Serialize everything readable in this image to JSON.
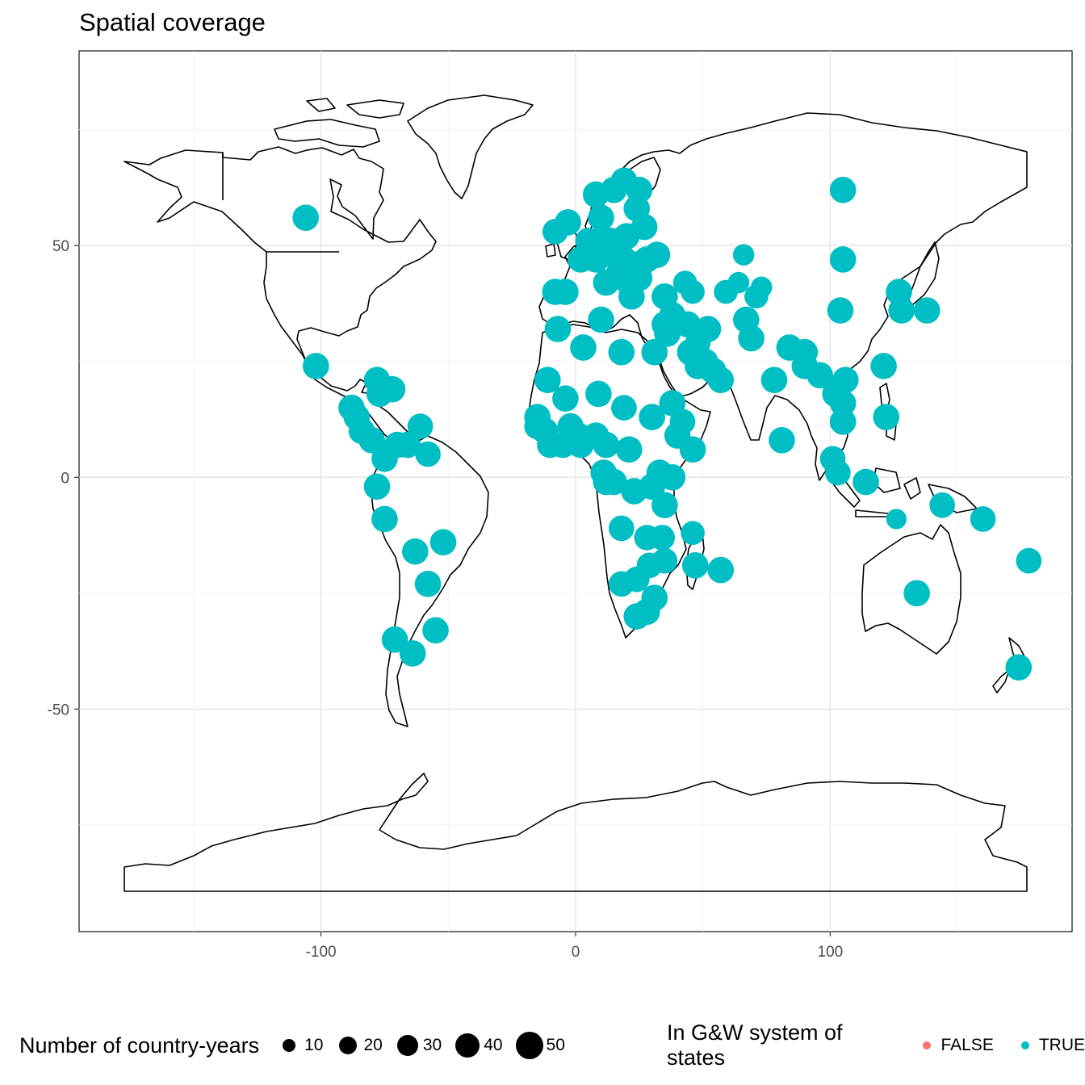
{
  "chart_data": {
    "type": "scatter",
    "title": "Spatial coverage",
    "xlabel": "",
    "ylabel": "",
    "xlim": [
      -195,
      195
    ],
    "ylim": [
      -98,
      92
    ],
    "x_ticks": [
      -100,
      0,
      100
    ],
    "y_ticks": [
      50,
      0,
      -50
    ],
    "x_tick_labels": [
      "-100",
      "0",
      "100"
    ],
    "y_tick_labels": [
      "50",
      "0",
      "-50"
    ],
    "grid": true,
    "legend_position": "bottom",
    "size_legend": {
      "title": "Number of country-years",
      "entries": [
        {
          "label": "10",
          "value": 10
        },
        {
          "label": "20",
          "value": 20
        },
        {
          "label": "30",
          "value": 30
        },
        {
          "label": "40",
          "value": 40
        },
        {
          "label": "50",
          "value": 50
        }
      ]
    },
    "color_legend": {
      "title": "In G&W system of states",
      "entries": [
        {
          "label": "FALSE",
          "color": "#F8766D"
        },
        {
          "label": "TRUE",
          "color": "#00BFC4"
        }
      ]
    },
    "points_series": "TRUE",
    "points": [
      {
        "x": -106,
        "y": 56,
        "size": 44
      },
      {
        "x": -102,
        "y": 24,
        "size": 44
      },
      {
        "x": -88,
        "y": 15,
        "size": 44
      },
      {
        "x": -86,
        "y": 13,
        "size": 44
      },
      {
        "x": -84,
        "y": 10,
        "size": 44
      },
      {
        "x": -80,
        "y": 8,
        "size": 44
      },
      {
        "x": -78,
        "y": 21,
        "size": 44
      },
      {
        "x": -77,
        "y": 18,
        "size": 44
      },
      {
        "x": -72,
        "y": 19,
        "size": 44
      },
      {
        "x": -75,
        "y": 4,
        "size": 44
      },
      {
        "x": -70,
        "y": 7,
        "size": 44
      },
      {
        "x": -61,
        "y": 11,
        "size": 40
      },
      {
        "x": -66,
        "y": 7,
        "size": 44
      },
      {
        "x": -58,
        "y": 5,
        "size": 40
      },
      {
        "x": -78,
        "y": -2,
        "size": 44
      },
      {
        "x": -75,
        "y": -9,
        "size": 44
      },
      {
        "x": -63,
        "y": -16,
        "size": 44
      },
      {
        "x": -52,
        "y": -14,
        "size": 44
      },
      {
        "x": -58,
        "y": -23,
        "size": 44
      },
      {
        "x": -55,
        "y": -33,
        "size": 44
      },
      {
        "x": -71,
        "y": -35,
        "size": 44
      },
      {
        "x": -64,
        "y": -38,
        "size": 44
      },
      {
        "x": -8,
        "y": 53,
        "size": 40
      },
      {
        "x": -3,
        "y": 55,
        "size": 44
      },
      {
        "x": 2,
        "y": 47,
        "size": 44
      },
      {
        "x": 8,
        "y": 61,
        "size": 44
      },
      {
        "x": 10,
        "y": 56,
        "size": 44
      },
      {
        "x": 15,
        "y": 62,
        "size": 44
      },
      {
        "x": 19,
        "y": 64,
        "size": 44
      },
      {
        "x": 25,
        "y": 62,
        "size": 44
      },
      {
        "x": 24,
        "y": 58,
        "size": 44
      },
      {
        "x": 27,
        "y": 54,
        "size": 44
      },
      {
        "x": 20,
        "y": 52,
        "size": 44
      },
      {
        "x": 14,
        "y": 51,
        "size": 44
      },
      {
        "x": 10,
        "y": 51,
        "size": 44
      },
      {
        "x": 5,
        "y": 51,
        "size": 44
      },
      {
        "x": 8,
        "y": 47,
        "size": 44
      },
      {
        "x": 15,
        "y": 48,
        "size": 44
      },
      {
        "x": 19,
        "y": 47,
        "size": 44
      },
      {
        "x": 25,
        "y": 46,
        "size": 44
      },
      {
        "x": 28,
        "y": 47,
        "size": 44
      },
      {
        "x": 32,
        "y": 48,
        "size": 44
      },
      {
        "x": 17,
        "y": 44,
        "size": 44
      },
      {
        "x": 21,
        "y": 42,
        "size": 44
      },
      {
        "x": 22,
        "y": 39,
        "size": 44
      },
      {
        "x": 25,
        "y": 43,
        "size": 44
      },
      {
        "x": 12,
        "y": 42,
        "size": 44
      },
      {
        "x": -8,
        "y": 40,
        "size": 44
      },
      {
        "x": -4,
        "y": 40,
        "size": 44
      },
      {
        "x": 35,
        "y": 39,
        "size": 44
      },
      {
        "x": 43,
        "y": 42,
        "size": 32
      },
      {
        "x": 46,
        "y": 40,
        "size": 32
      },
      {
        "x": 35,
        "y": 33,
        "size": 44
      },
      {
        "x": 36,
        "y": 31,
        "size": 44
      },
      {
        "x": 44,
        "y": 33,
        "size": 44
      },
      {
        "x": 38,
        "y": 35,
        "size": 44
      },
      {
        "x": 45,
        "y": 27,
        "size": 44
      },
      {
        "x": 52,
        "y": 32,
        "size": 44
      },
      {
        "x": 48,
        "y": 29,
        "size": 40
      },
      {
        "x": 51,
        "y": 25,
        "size": 40
      },
      {
        "x": 54,
        "y": 23,
        "size": 44
      },
      {
        "x": 57,
        "y": 21,
        "size": 44
      },
      {
        "x": 48,
        "y": 24,
        "size": 44
      },
      {
        "x": 31,
        "y": 27,
        "size": 44
      },
      {
        "x": 18,
        "y": 27,
        "size": 44
      },
      {
        "x": 10,
        "y": 34,
        "size": 44
      },
      {
        "x": 3,
        "y": 28,
        "size": 44
      },
      {
        "x": -7,
        "y": 32,
        "size": 44
      },
      {
        "x": -11,
        "y": 21,
        "size": 44
      },
      {
        "x": -4,
        "y": 17,
        "size": 44
      },
      {
        "x": 9,
        "y": 18,
        "size": 44
      },
      {
        "x": 19,
        "y": 15,
        "size": 40
      },
      {
        "x": 30,
        "y": 13,
        "size": 44
      },
      {
        "x": 38,
        "y": 16,
        "size": 44
      },
      {
        "x": 40,
        "y": 9,
        "size": 44
      },
      {
        "x": 46,
        "y": 6,
        "size": 44
      },
      {
        "x": 42,
        "y": 12,
        "size": 40
      },
      {
        "x": -15,
        "y": 13,
        "size": 44
      },
      {
        "x": -15,
        "y": 11,
        "size": 44
      },
      {
        "x": -12,
        "y": 10,
        "size": 44
      },
      {
        "x": -10,
        "y": 7,
        "size": 44
      },
      {
        "x": -5,
        "y": 7,
        "size": 44
      },
      {
        "x": -2,
        "y": 11,
        "size": 44
      },
      {
        "x": 1,
        "y": 9,
        "size": 44
      },
      {
        "x": 2,
        "y": 7,
        "size": 44
      },
      {
        "x": 8,
        "y": 9,
        "size": 44
      },
      {
        "x": 12,
        "y": 7,
        "size": 44
      },
      {
        "x": 21,
        "y": 6,
        "size": 44
      },
      {
        "x": 11,
        "y": 1,
        "size": 44
      },
      {
        "x": 12,
        "y": -1,
        "size": 44
      },
      {
        "x": 15,
        "y": -1,
        "size": 44
      },
      {
        "x": 23,
        "y": -3,
        "size": 44
      },
      {
        "x": 30,
        "y": -2,
        "size": 44
      },
      {
        "x": 33,
        "y": 1,
        "size": 44
      },
      {
        "x": 38,
        "y": 0,
        "size": 44
      },
      {
        "x": 35,
        "y": -6,
        "size": 44
      },
      {
        "x": 18,
        "y": -11,
        "size": 40
      },
      {
        "x": 28,
        "y": -13,
        "size": 40
      },
      {
        "x": 34,
        "y": -13,
        "size": 40
      },
      {
        "x": 46,
        "y": -12,
        "size": 32
      },
      {
        "x": 47,
        "y": -19,
        "size": 44
      },
      {
        "x": 57,
        "y": -20,
        "size": 44
      },
      {
        "x": 18,
        "y": -23,
        "size": 40
      },
      {
        "x": 24,
        "y": -22,
        "size": 40
      },
      {
        "x": 29,
        "y": -19,
        "size": 40
      },
      {
        "x": 35,
        "y": -18,
        "size": 40
      },
      {
        "x": 31,
        "y": -26,
        "size": 44
      },
      {
        "x": 24,
        "y": -30,
        "size": 44
      },
      {
        "x": 28,
        "y": -29,
        "size": 44
      },
      {
        "x": 66,
        "y": 48,
        "size": 22
      },
      {
        "x": 59,
        "y": 40,
        "size": 32
      },
      {
        "x": 64,
        "y": 42,
        "size": 22
      },
      {
        "x": 71,
        "y": 39,
        "size": 32
      },
      {
        "x": 73,
        "y": 41,
        "size": 22
      },
      {
        "x": 67,
        "y": 34,
        "size": 44
      },
      {
        "x": 69,
        "y": 30,
        "size": 44
      },
      {
        "x": 78,
        "y": 21,
        "size": 44
      },
      {
        "x": 81,
        "y": 8,
        "size": 44
      },
      {
        "x": 84,
        "y": 28,
        "size": 44
      },
      {
        "x": 90,
        "y": 27,
        "size": 44
      },
      {
        "x": 90,
        "y": 24,
        "size": 44
      },
      {
        "x": 96,
        "y": 22,
        "size": 44
      },
      {
        "x": 102,
        "y": 18,
        "size": 44
      },
      {
        "x": 105,
        "y": 16,
        "size": 44
      },
      {
        "x": 105,
        "y": 12,
        "size": 44
      },
      {
        "x": 106,
        "y": 21,
        "size": 44
      },
      {
        "x": 101,
        "y": 4,
        "size": 40
      },
      {
        "x": 103,
        "y": 1,
        "size": 40
      },
      {
        "x": 114,
        "y": -1,
        "size": 44
      },
      {
        "x": 105,
        "y": 47,
        "size": 44
      },
      {
        "x": 104,
        "y": 36,
        "size": 44
      },
      {
        "x": 105,
        "y": 62,
        "size": 44
      },
      {
        "x": 127,
        "y": 40,
        "size": 44
      },
      {
        "x": 128,
        "y": 36,
        "size": 44
      },
      {
        "x": 138,
        "y": 36,
        "size": 44
      },
      {
        "x": 121,
        "y": 24,
        "size": 44
      },
      {
        "x": 122,
        "y": 13,
        "size": 44
      },
      {
        "x": 126,
        "y": -9,
        "size": 18
      },
      {
        "x": 144,
        "y": -6,
        "size": 40
      },
      {
        "x": 160,
        "y": -9,
        "size": 40
      },
      {
        "x": 134,
        "y": -25,
        "size": 44
      },
      {
        "x": 178,
        "y": -18,
        "size": 40
      },
      {
        "x": 174,
        "y": -41,
        "size": 44
      }
    ]
  }
}
